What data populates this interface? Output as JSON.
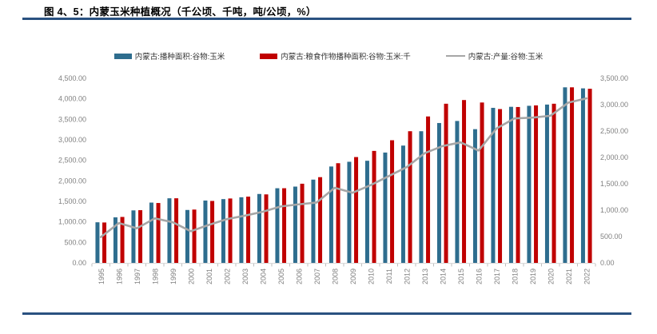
{
  "figure": {
    "title": "图 4、5：内蒙玉米种植概况（千公顷、千吨，吨/公顷，%）"
  },
  "colors": {
    "bar_blue": "#2e6d8e",
    "bar_red": "#c00000",
    "line_gray": "#a6a6a6",
    "rule_navy": "#2a5180",
    "axis_text": "#808080",
    "axis_line": "#d9d9d9",
    "tick_mark": "#bfbfbf",
    "legend_text": "#333333"
  },
  "chart_data": {
    "type": "bar",
    "subtype": "grouped bars with overlay line",
    "grid": false,
    "legend_position": "top",
    "categories": [
      "1995",
      "1996",
      "1997",
      "1998",
      "1999",
      "2000",
      "2001",
      "2002",
      "2003",
      "2004",
      "2005",
      "2006",
      "2007",
      "2008",
      "2009",
      "2010",
      "2011",
      "2012",
      "2013",
      "2014",
      "2015",
      "2016",
      "2017",
      "2018",
      "2019",
      "2020",
      "2021",
      "2022"
    ],
    "series": [
      {
        "name": "内蒙古:播种面积:谷物:玉米",
        "type": "bar",
        "axis": "left",
        "color": "#2e6d8e",
        "values": [
          990,
          1110,
          1280,
          1470,
          1575,
          1290,
          1520,
          1555,
          1600,
          1680,
          1820,
          1860,
          2030,
          2350,
          2465,
          2490,
          2690,
          2860,
          3210,
          3410,
          3460,
          3260,
          3780,
          3805,
          3830,
          3860,
          4280,
          4255
        ]
      },
      {
        "name": "内蒙古:粮食作物播种面积:谷物:玉米:千",
        "type": "bar",
        "axis": "left",
        "color": "#c00000",
        "values": [
          985,
          1120,
          1285,
          1460,
          1575,
          1300,
          1510,
          1570,
          1615,
          1670,
          1820,
          1930,
          2090,
          2430,
          2580,
          2730,
          2990,
          3210,
          3570,
          3880,
          3970,
          3910,
          3750,
          3800,
          3840,
          3880,
          4280,
          4245
        ]
      },
      {
        "name": "内蒙古:产量:谷物:玉米",
        "type": "line",
        "axis": "right",
        "color": "#a6a6a6",
        "values": [
          490,
          755,
          655,
          845,
          770,
          600,
          720,
          830,
          895,
          970,
          1070,
          1110,
          1145,
          1425,
          1330,
          1475,
          1645,
          1815,
          2080,
          2215,
          2285,
          2130,
          2550,
          2740,
          2755,
          2790,
          3040,
          3120
        ]
      }
    ],
    "left_axis": {
      "min": 0,
      "max": 4500,
      "step": 500,
      "ticks": [
        "4,500.00",
        "4,000.00",
        "3,500.00",
        "3,000.00",
        "2,500.00",
        "2,000.00",
        "1,500.00",
        "1,000.00",
        "500.00",
        "0.00"
      ]
    },
    "right_axis": {
      "min": 0,
      "max": 3500,
      "step": 500,
      "ticks": [
        "3,500.00",
        "3,000.00",
        "2,500.00",
        "2,000.00",
        "1,500.00",
        "1,000.00",
        "500.00",
        "0.00"
      ]
    }
  }
}
